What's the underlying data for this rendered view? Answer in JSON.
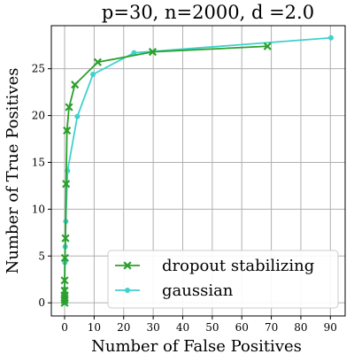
{
  "chart_data": {
    "type": "line",
    "title": "p=30, n=2000, d =2.0",
    "xlabel": "Number of False Positives",
    "ylabel": "Number of True Positives",
    "xlim": [
      -4.5,
      95
    ],
    "ylim": [
      -1.4,
      29.6
    ],
    "xticks": [
      0,
      10,
      20,
      30,
      40,
      50,
      60,
      70,
      80,
      90
    ],
    "yticks": [
      0,
      5,
      10,
      15,
      20,
      25
    ],
    "grid": true,
    "legend_position": "lower-right",
    "series": [
      {
        "name": "dropout stabilizing",
        "color": "#2ca02c",
        "marker": "x",
        "x": [
          0,
          0,
          0,
          0,
          0,
          0,
          0.1,
          0.3,
          0.5,
          0.8,
          1.5,
          3.5,
          11.2,
          29.8,
          68.7
        ],
        "y": [
          0,
          0.3,
          0.5,
          0.8,
          1.3,
          2.4,
          4.8,
          6.9,
          12.7,
          18.4,
          20.9,
          23.3,
          25.7,
          26.8,
          27.4
        ]
      },
      {
        "name": "gaussian",
        "color": "#3fd1ce",
        "marker": "circle",
        "x": [
          0,
          0,
          0,
          0,
          0.1,
          0.2,
          0.4,
          1.0,
          4.3,
          9.6,
          23.5,
          90.2
        ],
        "y": [
          0,
          0.3,
          0.6,
          1.5,
          4.3,
          6.0,
          8.7,
          14.1,
          19.9,
          24.4,
          26.7,
          28.3
        ]
      }
    ]
  }
}
